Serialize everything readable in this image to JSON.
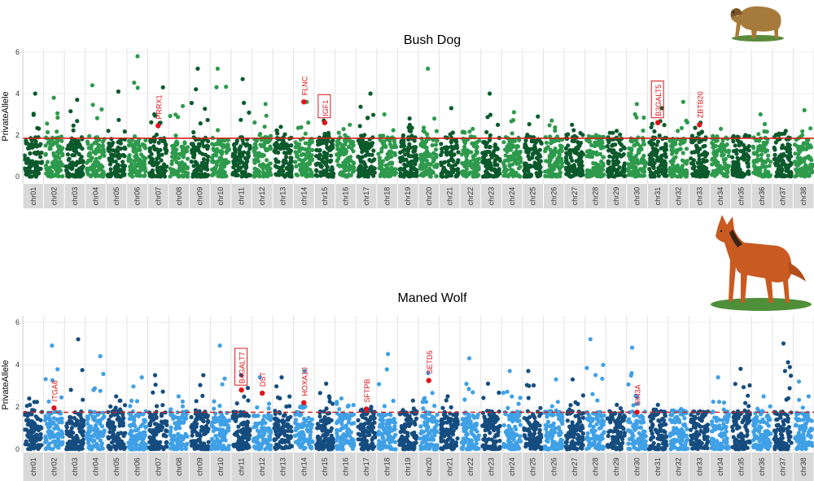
{
  "chart_data": [
    {
      "type": "scatter",
      "title": "Bush Dog",
      "ylabel": "PrivateAllele",
      "xlabel": "",
      "ylim": [
        0,
        6.3
      ],
      "yticks": [
        0,
        2,
        4,
        6
      ],
      "threshold": 1.85,
      "threshold_style": "solid",
      "chromosomes": [
        "chr01",
        "chr02",
        "chr03",
        "chr04",
        "chr05",
        "chr06",
        "chr07",
        "chr08",
        "chr09",
        "chr10",
        "chr11",
        "chr12",
        "chr13",
        "chr14",
        "chr15",
        "chr16",
        "chr17",
        "chr18",
        "chr19",
        "chr20",
        "chr21",
        "chr22",
        "chr23",
        "chr24",
        "chr25",
        "chr26",
        "chr27",
        "chr28",
        "chr29",
        "chr30",
        "chr31",
        "chr32",
        "chr33",
        "chr34",
        "chr35",
        "chr36",
        "chr37",
        "chr38"
      ],
      "colors": {
        "odd": "#0b5a2c",
        "even": "#2e9a4c",
        "highlight": "#e0141b",
        "threshold": "#d0221d"
      },
      "chrom_max": [
        4.0,
        3.8,
        3.7,
        4.4,
        4.1,
        5.8,
        4.3,
        3.4,
        5.2,
        5.2,
        4.7,
        3.5,
        2.4,
        3.6,
        2.7,
        2.5,
        4.0,
        3.0,
        2.8,
        5.2,
        3.3,
        2.3,
        4.0,
        3.1,
        2.9,
        2.7,
        2.5,
        2.0,
        2.2,
        3.5,
        3.3,
        3.6,
        2.6,
        2.3,
        2.0,
        3.0,
        2.2,
        3.2
      ],
      "highlighted_genes": [
        {
          "gene": "PRRX1",
          "chrom": "chr07",
          "value": 2.45,
          "boxed": false
        },
        {
          "gene": "FLNC",
          "chrom": "chr14",
          "value": 3.6,
          "boxed": false
        },
        {
          "gene": "IGF1",
          "chrom": "chr15",
          "value": 2.6,
          "boxed": true
        },
        {
          "gene": "B3GALT5",
          "chrom": "chr31",
          "value": 2.6,
          "boxed": true
        },
        {
          "gene": "ZBTB20",
          "chrom": "chr33",
          "value": 2.5,
          "boxed": false
        }
      ]
    },
    {
      "type": "scatter",
      "title": "Maned Wolf",
      "ylabel": "PrivateAllele",
      "xlabel": "",
      "ylim": [
        0,
        6.3
      ],
      "yticks": [
        0,
        2,
        4,
        6
      ],
      "threshold": 1.75,
      "threshold_style": "dashed",
      "chromosomes": [
        "chr01",
        "chr02",
        "chr03",
        "chr04",
        "chr05",
        "chr06",
        "chr07",
        "chr08",
        "chr09",
        "chr10",
        "chr11",
        "chr12",
        "chr13",
        "chr14",
        "chr15",
        "chr16",
        "chr17",
        "chr18",
        "chr19",
        "chr20",
        "chr21",
        "chr22",
        "chr23",
        "chr24",
        "chr25",
        "chr26",
        "chr27",
        "chr28",
        "chr29",
        "chr30",
        "chr31",
        "chr32",
        "chr33",
        "chr34",
        "chr35",
        "chr36",
        "chr37",
        "chr38"
      ],
      "colors": {
        "odd": "#154d80",
        "even": "#3fa0e6",
        "highlight": "#e0141b",
        "threshold": "#d0221d"
      },
      "chrom_max": [
        2.4,
        4.9,
        5.2,
        4.4,
        2.5,
        3.4,
        3.5,
        2.5,
        3.5,
        4.9,
        3.5,
        3.4,
        3.4,
        3.7,
        3.1,
        2.4,
        2.0,
        4.5,
        2.3,
        3.6,
        2.5,
        4.3,
        3.1,
        3.7,
        3.7,
        3.3,
        3.3,
        5.2,
        2.1,
        4.8,
        2.1,
        1.9,
        1.6,
        3.4,
        3.8,
        2.5,
        5.0,
        3.2
      ],
      "highlighted_genes": [
        {
          "gene": "ITGA8",
          "chrom": "chr02",
          "value": 1.95,
          "boxed": false
        },
        {
          "gene": "B4GALT7",
          "chrom": "chr11",
          "value": 2.8,
          "boxed": true
        },
        {
          "gene": "DST",
          "chrom": "chr12",
          "value": 2.65,
          "boxed": false
        },
        {
          "gene": "HOXA10",
          "chrom": "chr14",
          "value": 2.2,
          "boxed": false
        },
        {
          "gene": "SFTPB",
          "chrom": "chr17",
          "value": 1.9,
          "boxed": false
        },
        {
          "gene": "SETD5",
          "chrom": "chr20",
          "value": 3.25,
          "boxed": false
        },
        {
          "gene": "SIN3A",
          "chrom": "chr30",
          "value": 1.75,
          "boxed": false
        }
      ]
    }
  ]
}
